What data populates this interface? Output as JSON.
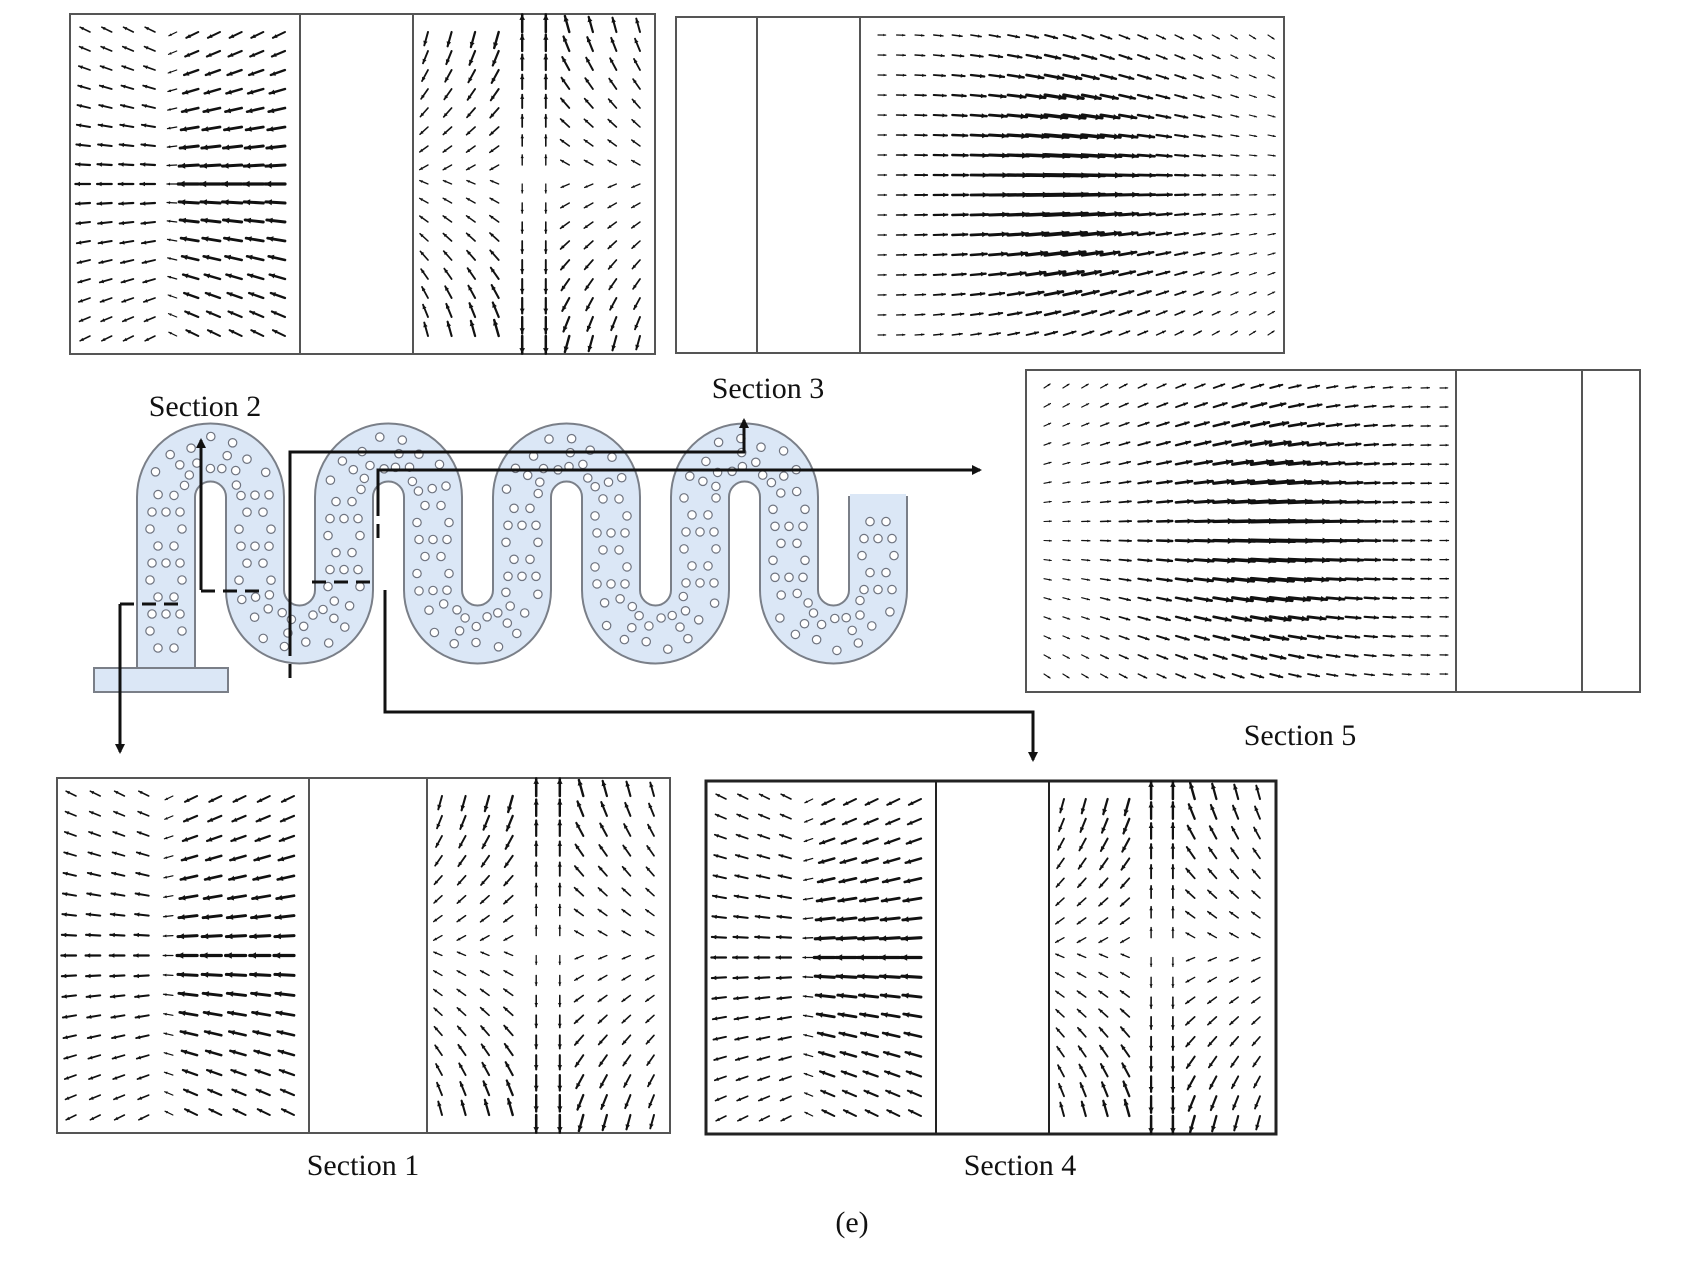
{
  "labels": {
    "section1": "Section 1",
    "section2": "Section 2",
    "section3": "Section 3",
    "section4": "Section 4",
    "section5": "Section 5",
    "subfigure": "(e)"
  },
  "colors": {
    "channel_fill": "#dbe7f6",
    "channel_stroke": "#7a7f88",
    "obstacle_stroke": "#6f7480",
    "ink": "#111111",
    "panel_border": "#555555"
  },
  "vector_fields": {
    "section1": {
      "type": "split-vortex"
    },
    "section2": {
      "type": "split-vortex"
    },
    "section3": {
      "type": "converging-jet"
    },
    "section4": {
      "type": "split-vortex"
    },
    "section5": {
      "type": "converging-jet-reversed"
    }
  }
}
